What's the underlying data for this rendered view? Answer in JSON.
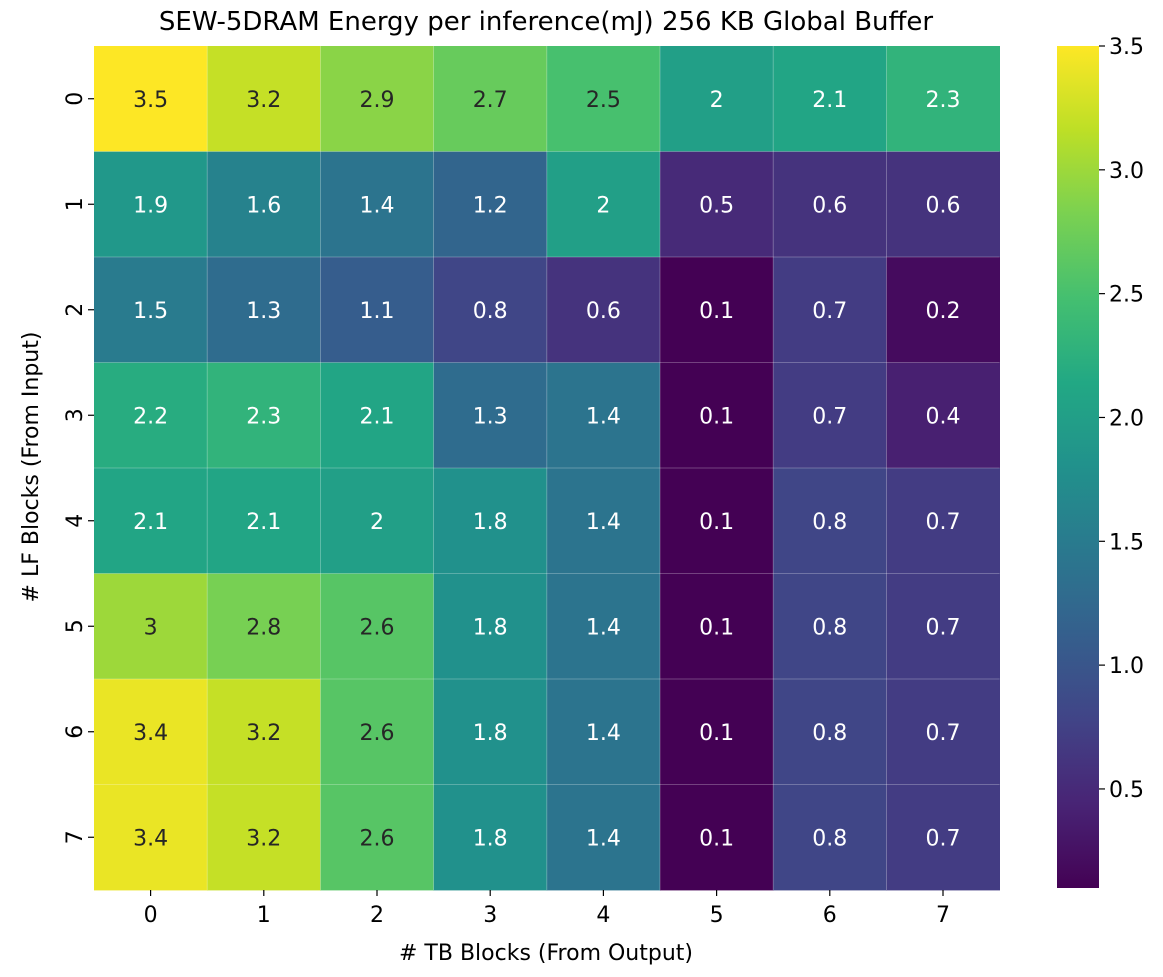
{
  "chart_data": {
    "type": "heatmap",
    "title": "SEW-5DRAM Energy per inference(mJ) 256 KB Global Buffer",
    "xlabel": "# TB Blocks (From Output)",
    "ylabel": "# LF Blocks (From Input)",
    "x_categories": [
      "0",
      "1",
      "2",
      "3",
      "4",
      "5",
      "6",
      "7"
    ],
    "y_categories": [
      "0",
      "1",
      "2",
      "3",
      "4",
      "5",
      "6",
      "7"
    ],
    "values": [
      [
        3.5,
        3.2,
        2.9,
        2.7,
        2.5,
        2,
        2.1,
        2.3
      ],
      [
        1.9,
        1.6,
        1.4,
        1.2,
        2,
        0.5,
        0.6,
        0.6
      ],
      [
        1.5,
        1.3,
        1.1,
        0.8,
        0.6,
        0.1,
        0.7,
        0.2
      ],
      [
        2.2,
        2.3,
        2.1,
        1.3,
        1.4,
        0.1,
        0.7,
        0.4
      ],
      [
        2.1,
        2.1,
        2,
        1.8,
        1.4,
        0.1,
        0.8,
        0.7
      ],
      [
        3,
        2.8,
        2.6,
        1.8,
        1.4,
        0.1,
        0.8,
        0.7
      ],
      [
        3.4,
        3.2,
        2.6,
        1.8,
        1.4,
        0.1,
        0.8,
        0.7
      ],
      [
        3.4,
        3.2,
        2.6,
        1.8,
        1.4,
        0.1,
        0.8,
        0.7
      ]
    ],
    "colormap": "viridis",
    "color_range": [
      0.1,
      3.5
    ],
    "colorbar_ticks": [
      "0.5",
      "1.0",
      "1.5",
      "2.0",
      "2.5",
      "3.0",
      "3.5"
    ]
  }
}
